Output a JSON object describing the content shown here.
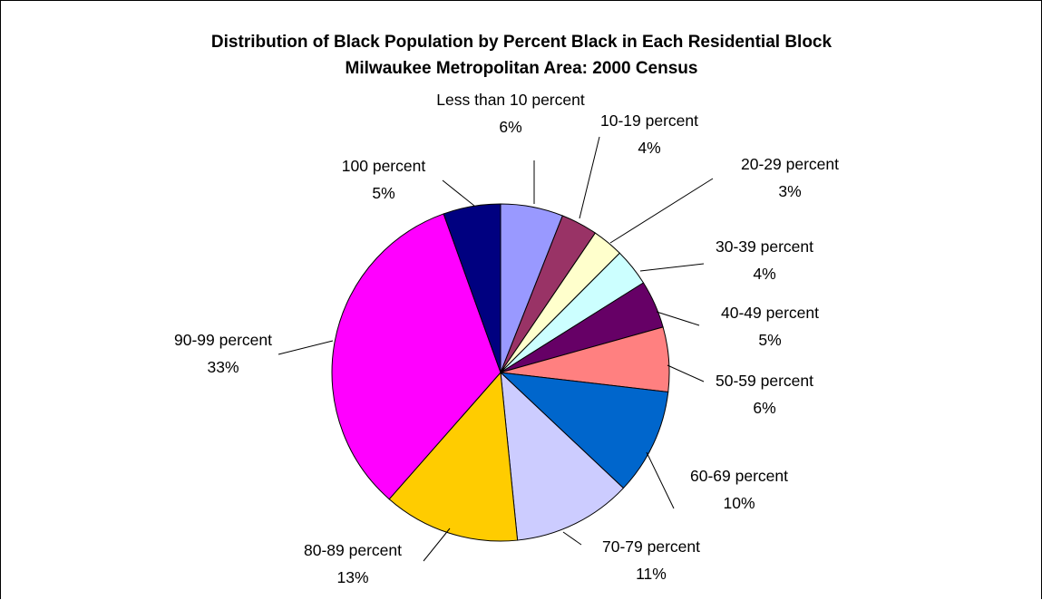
{
  "chart_data": {
    "type": "pie",
    "title": [
      "Distribution of Black Population by Percent Black in Each Residential Block",
      "Milwaukee Metropolitan Area: 2000 Census"
    ],
    "slices": [
      {
        "label": "Less than 10 percent",
        "percent_label": "6%",
        "value": 6,
        "color": "#9999FF"
      },
      {
        "label": "10-19 percent",
        "percent_label": "4%",
        "value": 3.5,
        "color": "#993366"
      },
      {
        "label": "20-29 percent",
        "percent_label": "3%",
        "value": 3,
        "color": "#FFFFCC"
      },
      {
        "label": "30-39 percent",
        "percent_label": "4%",
        "value": 3.6,
        "color": "#CCFFFF"
      },
      {
        "label": "40-49 percent",
        "percent_label": "5%",
        "value": 4.6,
        "color": "#660066"
      },
      {
        "label": "50-59 percent",
        "percent_label": "6%",
        "value": 6.2,
        "color": "#FF8080"
      },
      {
        "label": "60-69 percent",
        "percent_label": "10%",
        "value": 10.2,
        "color": "#0066CC"
      },
      {
        "label": "70-79 percent",
        "percent_label": "11%",
        "value": 11.4,
        "color": "#CCCCFF"
      },
      {
        "label": "80-89 percent",
        "percent_label": "13%",
        "value": 13.1,
        "color": "#FFCC00"
      },
      {
        "label": "90-99 percent",
        "percent_label": "33%",
        "value": 33.1,
        "color": "#FF00FF"
      },
      {
        "label": "100 percent",
        "percent_label": "5%",
        "value": 5.5,
        "color": "#000080"
      }
    ]
  }
}
